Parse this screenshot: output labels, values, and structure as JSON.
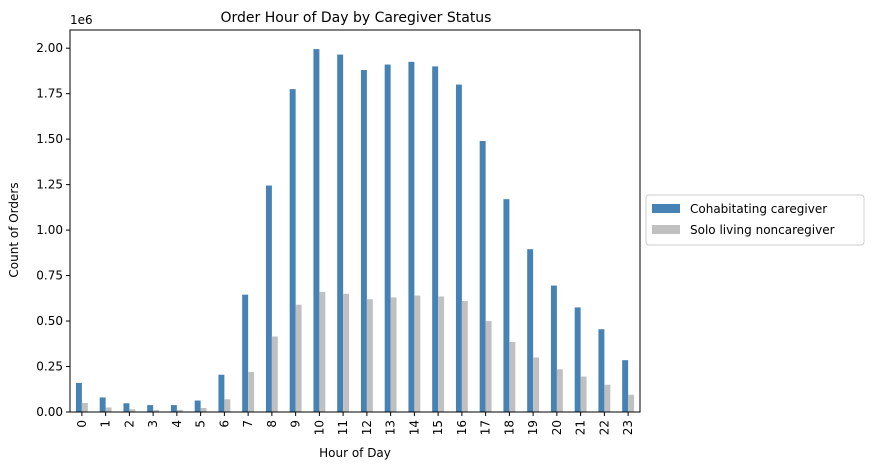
{
  "chart_data": {
    "type": "bar",
    "title": "Order Hour of Day by Caregiver Status",
    "xlabel": "Hour of Day",
    "ylabel": "Count of Orders",
    "y_offset_text": "1e6",
    "y_scale": 1000000,
    "ylim": [
      0,
      2100000
    ],
    "yticks": [
      0,
      250000,
      500000,
      750000,
      1000000,
      1250000,
      1500000,
      1750000,
      2000000
    ],
    "ytick_labels": [
      "0.00",
      "0.25",
      "0.50",
      "0.75",
      "1.00",
      "1.25",
      "1.50",
      "1.75",
      "2.00"
    ],
    "categories": [
      "0",
      "1",
      "2",
      "3",
      "4",
      "5",
      "6",
      "7",
      "8",
      "9",
      "10",
      "11",
      "12",
      "13",
      "14",
      "15",
      "16",
      "17",
      "18",
      "19",
      "20",
      "21",
      "22",
      "23"
    ],
    "legend_position": "center-right outside",
    "grid": false,
    "series": [
      {
        "name": "Cohabitating caregiver",
        "color": "#4682b4",
        "values": [
          160000,
          80000,
          48000,
          38000,
          38000,
          63000,
          205000,
          645000,
          1245000,
          1775000,
          1995000,
          1965000,
          1880000,
          1910000,
          1925000,
          1900000,
          1800000,
          1490000,
          1170000,
          895000,
          695000,
          575000,
          455000,
          285000
        ]
      },
      {
        "name": "Solo living noncaregiver",
        "color": "#c0c0c0",
        "values": [
          50000,
          25000,
          15000,
          12000,
          12000,
          22000,
          70000,
          220000,
          415000,
          590000,
          660000,
          650000,
          620000,
          630000,
          640000,
          635000,
          610000,
          500000,
          385000,
          300000,
          235000,
          195000,
          150000,
          95000
        ]
      }
    ]
  }
}
